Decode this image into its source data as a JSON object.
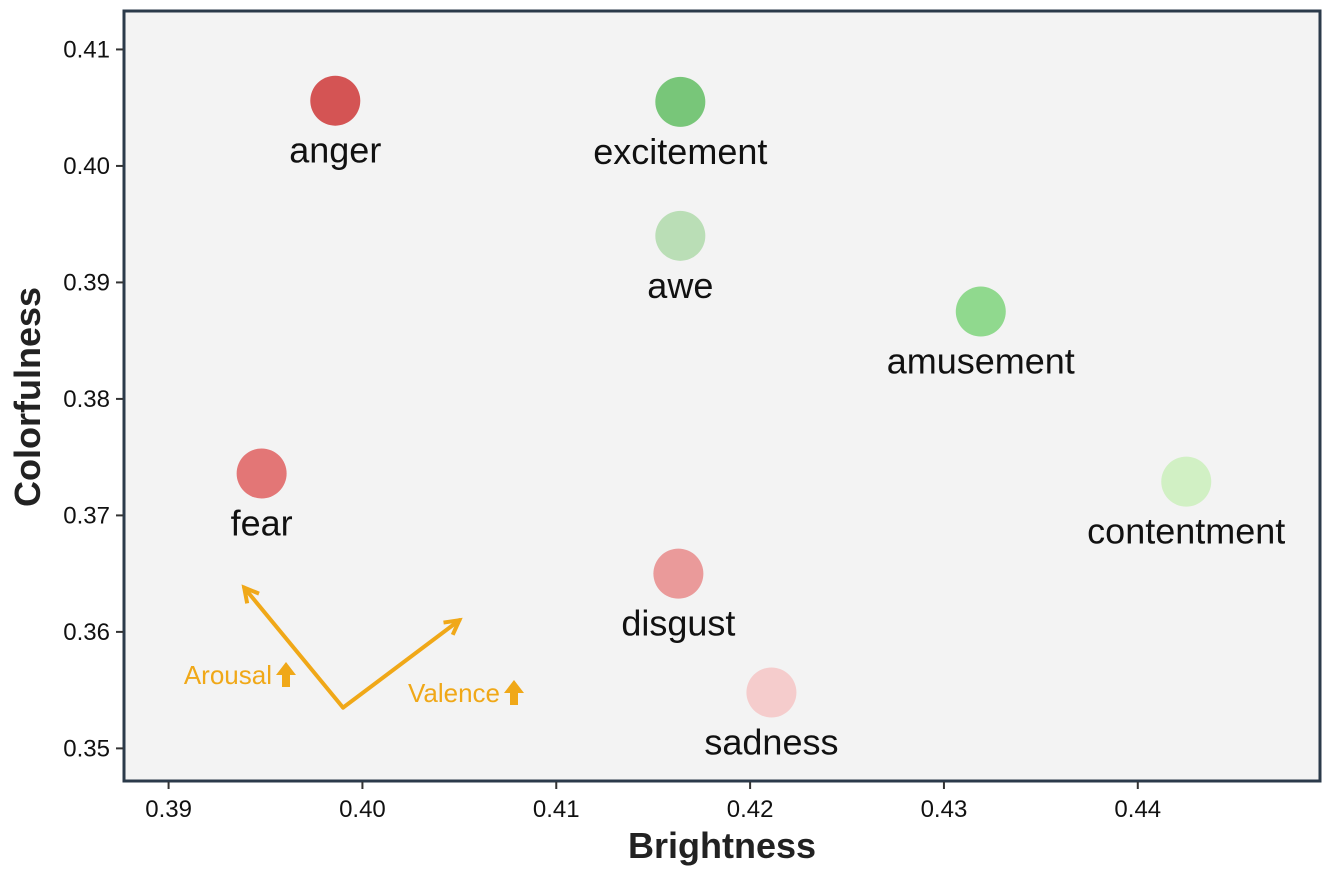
{
  "chart_data": {
    "type": "scatter",
    "xlabel": "Brightness",
    "ylabel": "Colorfulness",
    "xlim": [
      0.3877,
      0.4494
    ],
    "ylim": [
      0.3472,
      0.4133
    ],
    "xticks": [
      0.39,
      0.4,
      0.41,
      0.42,
      0.43,
      0.44
    ],
    "xtick_labels": [
      "0.39",
      "0.40",
      "0.41",
      "0.42",
      "0.43",
      "0.44"
    ],
    "yticks": [
      0.35,
      0.36,
      0.37,
      0.38,
      0.39,
      0.4,
      0.41
    ],
    "ytick_labels": [
      "0.35",
      "0.36",
      "0.37",
      "0.38",
      "0.39",
      "0.40",
      "0.41"
    ],
    "grid": false,
    "plot_background": "#f3f3f3",
    "frame_color": "#2b3a4a",
    "points": [
      {
        "label": "anger",
        "x": 0.3986,
        "y": 0.4056,
        "color": "#d45454"
      },
      {
        "label": "excitement",
        "x": 0.4164,
        "y": 0.4055,
        "color": "#78c679"
      },
      {
        "label": "awe",
        "x": 0.4164,
        "y": 0.394,
        "color": "#badeb6"
      },
      {
        "label": "amusement",
        "x": 0.4319,
        "y": 0.3875,
        "color": "#90d98e"
      },
      {
        "label": "fear",
        "x": 0.3948,
        "y": 0.3736,
        "color": "#e37676"
      },
      {
        "label": "contentment",
        "x": 0.4425,
        "y": 0.3729,
        "color": "#d1f0c4"
      },
      {
        "label": "disgust",
        "x": 0.4163,
        "y": 0.365,
        "color": "#ea9a9a"
      },
      {
        "label": "sadness",
        "x": 0.4211,
        "y": 0.3548,
        "color": "#f5cccc"
      }
    ],
    "annotations": [
      {
        "label": "Arousal",
        "from": [
          0.399,
          0.3535
        ],
        "to": [
          0.3939,
          0.3638
        ],
        "color": "#f0a818"
      },
      {
        "label": "Valence",
        "from": [
          0.399,
          0.3535
        ],
        "to": [
          0.405,
          0.361
        ],
        "color": "#f0a818"
      }
    ]
  }
}
